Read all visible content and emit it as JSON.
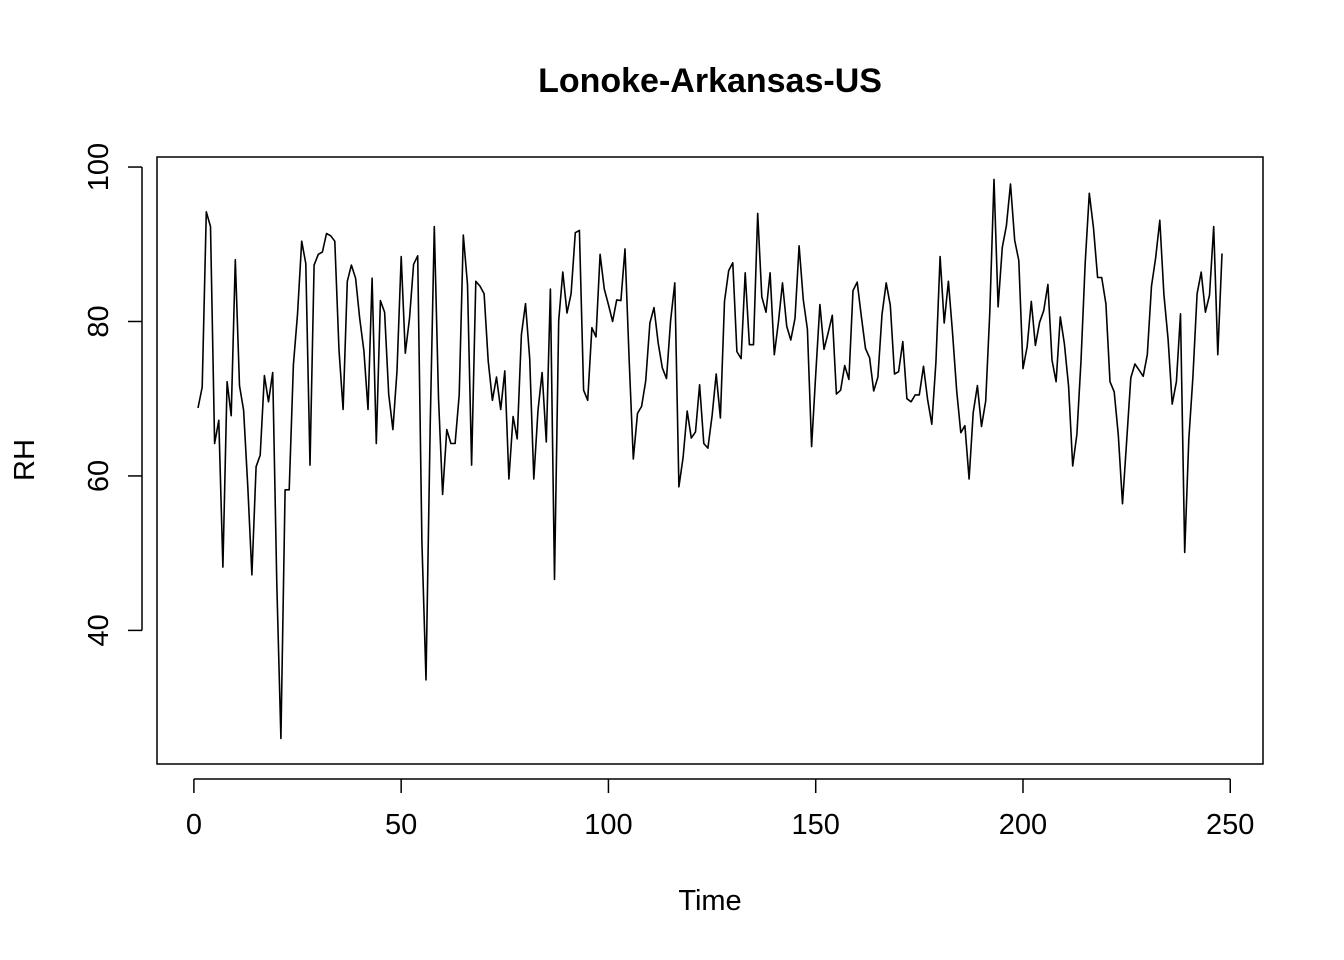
{
  "chart_data": {
    "type": "line",
    "title": "Lonoke-Arkansas-US",
    "xlabel": "Time",
    "ylabel": "RH",
    "xlim": [
      -8.9,
      257.9
    ],
    "ylim": [
      22.7,
      101.3
    ],
    "xticks": [
      0,
      50,
      100,
      150,
      200,
      250
    ],
    "yticks": [
      40,
      60,
      80,
      100
    ],
    "grid": false,
    "x": [
      1,
      2,
      3,
      4,
      5,
      6,
      7,
      8,
      9,
      10,
      11,
      12,
      13,
      14,
      15,
      16,
      17,
      18,
      19,
      20,
      21,
      22,
      23,
      24,
      25,
      26,
      27,
      28,
      29,
      30,
      31,
      32,
      33,
      34,
      35,
      36,
      37,
      38,
      39,
      40,
      41,
      42,
      43,
      44,
      45,
      46,
      47,
      48,
      49,
      50,
      51,
      52,
      53,
      54,
      55,
      56,
      57,
      58,
      59,
      60,
      61,
      62,
      63,
      64,
      65,
      66,
      67,
      68,
      69,
      70,
      71,
      72,
      73,
      74,
      75,
      76,
      77,
      78,
      79,
      80,
      81,
      82,
      83,
      84,
      85,
      86,
      87,
      88,
      89,
      90,
      91,
      92,
      93,
      94,
      95,
      96,
      97,
      98,
      99,
      100,
      101,
      102,
      103,
      104,
      105,
      106,
      107,
      108,
      109,
      110,
      111,
      112,
      113,
      114,
      115,
      116,
      117,
      118,
      119,
      120,
      121,
      122,
      123,
      124,
      125,
      126,
      127,
      128,
      129,
      130,
      131,
      132,
      133,
      134,
      135,
      136,
      137,
      138,
      139,
      140,
      141,
      142,
      143,
      144,
      145,
      146,
      147,
      148,
      149,
      150,
      151,
      152,
      153,
      154,
      155,
      156,
      157,
      158,
      159,
      160,
      161,
      162,
      163,
      164,
      165,
      166,
      167,
      168,
      169,
      170,
      171,
      172,
      173,
      174,
      175,
      176,
      177,
      178,
      179,
      180,
      181,
      182,
      183,
      184,
      185,
      186,
      187,
      188,
      189,
      190,
      191,
      192,
      193,
      194,
      195,
      196,
      197,
      198,
      199,
      200,
      201,
      202,
      203,
      204,
      205,
      206,
      207,
      208,
      209,
      210,
      211,
      212,
      213,
      214,
      215,
      216,
      217,
      218,
      219,
      220,
      221,
      222,
      223,
      224,
      225,
      226,
      227,
      228,
      229,
      230,
      231,
      232,
      233,
      234,
      235,
      236,
      237,
      238,
      239,
      240,
      241,
      242,
      243,
      244,
      245,
      246,
      247,
      248
    ],
    "series": [
      {
        "values": [
          68.8,
          71.5,
          94.2,
          92.3,
          64.2,
          67.2,
          48.2,
          72.2,
          67.8,
          88.0,
          71.7,
          68.5,
          58.6,
          47.2,
          61.2,
          62.7,
          73.0,
          69.6,
          73.4,
          46.0,
          26.0,
          58.2,
          58.2,
          74.4,
          80.9,
          90.4,
          87.5,
          61.4,
          87.3,
          88.7,
          89.0,
          91.4,
          91.1,
          90.4,
          76.3,
          68.6,
          85.2,
          87.3,
          85.6,
          80.4,
          76.2,
          68.6,
          85.6,
          64.2,
          82.7,
          81.2,
          70.6,
          66.0,
          73.6,
          88.4,
          75.9,
          80.4,
          87.4,
          88.5,
          51.5,
          33.6,
          66.5,
          92.3,
          70.1,
          57.6,
          66.0,
          64.2,
          64.2,
          70.5,
          91.2,
          84.8,
          61.4,
          85.2,
          84.6,
          83.6,
          74.9,
          69.8,
          72.8,
          68.6,
          73.6,
          59.6,
          67.7,
          64.8,
          78.3,
          82.3,
          75.2,
          59.6,
          68.5,
          73.4,
          64.4,
          84.2,
          46.6,
          80.1,
          86.4,
          81.1,
          83.6,
          91.5,
          91.8,
          71.1,
          69.8,
          79.2,
          78.0,
          88.7,
          84.2,
          82.2,
          80.0,
          82.8,
          82.7,
          89.4,
          74.9,
          62.2,
          68.1,
          69.0,
          72.3,
          79.8,
          81.8,
          77.2,
          74.0,
          72.6,
          80.1,
          85.0,
          58.6,
          62.4,
          68.4,
          64.9,
          65.7,
          71.8,
          64.2,
          63.6,
          67.8,
          73.2,
          67.5,
          82.6,
          86.6,
          87.6,
          76.1,
          75.2,
          86.3,
          77.0,
          77.0,
          94.0,
          83.2,
          81.2,
          86.3,
          75.7,
          79.9,
          85.0,
          79.4,
          77.6,
          80.4,
          89.8,
          82.8,
          79.0,
          63.8,
          73.1,
          82.2,
          76.4,
          78.5,
          80.8,
          70.6,
          71.1,
          74.3,
          72.5,
          84.0,
          85.1,
          80.7,
          76.5,
          75.3,
          71.0,
          72.8,
          80.9,
          85.0,
          82.1,
          73.2,
          73.5,
          77.4,
          70.0,
          69.6,
          70.5,
          70.5,
          74.2,
          69.9,
          66.7,
          74.7,
          88.4,
          79.8,
          85.2,
          78.6,
          71.0,
          65.6,
          66.5,
          59.6,
          68.2,
          71.7,
          66.4,
          69.7,
          81.2,
          98.4,
          81.9,
          89.6,
          92.4,
          97.8,
          90.5,
          87.9,
          73.9,
          76.7,
          82.6,
          76.9,
          79.9,
          81.4,
          84.8,
          75.0,
          72.2,
          80.6,
          77.1,
          71.6,
          61.3,
          65.4,
          74.9,
          87.6,
          96.6,
          92.1,
          85.7,
          85.7,
          82.3,
          72.2,
          70.9,
          65.3,
          56.4,
          64.4,
          72.7,
          74.5,
          73.7,
          72.9,
          75.7,
          84.6,
          88.2,
          93.1,
          83.5,
          77.7,
          69.3,
          72.2,
          81.0,
          50.1,
          64.7,
          72.8,
          83.6,
          86.4,
          81.2,
          83.4,
          92.3,
          75.7,
          88.8
        ]
      }
    ]
  }
}
